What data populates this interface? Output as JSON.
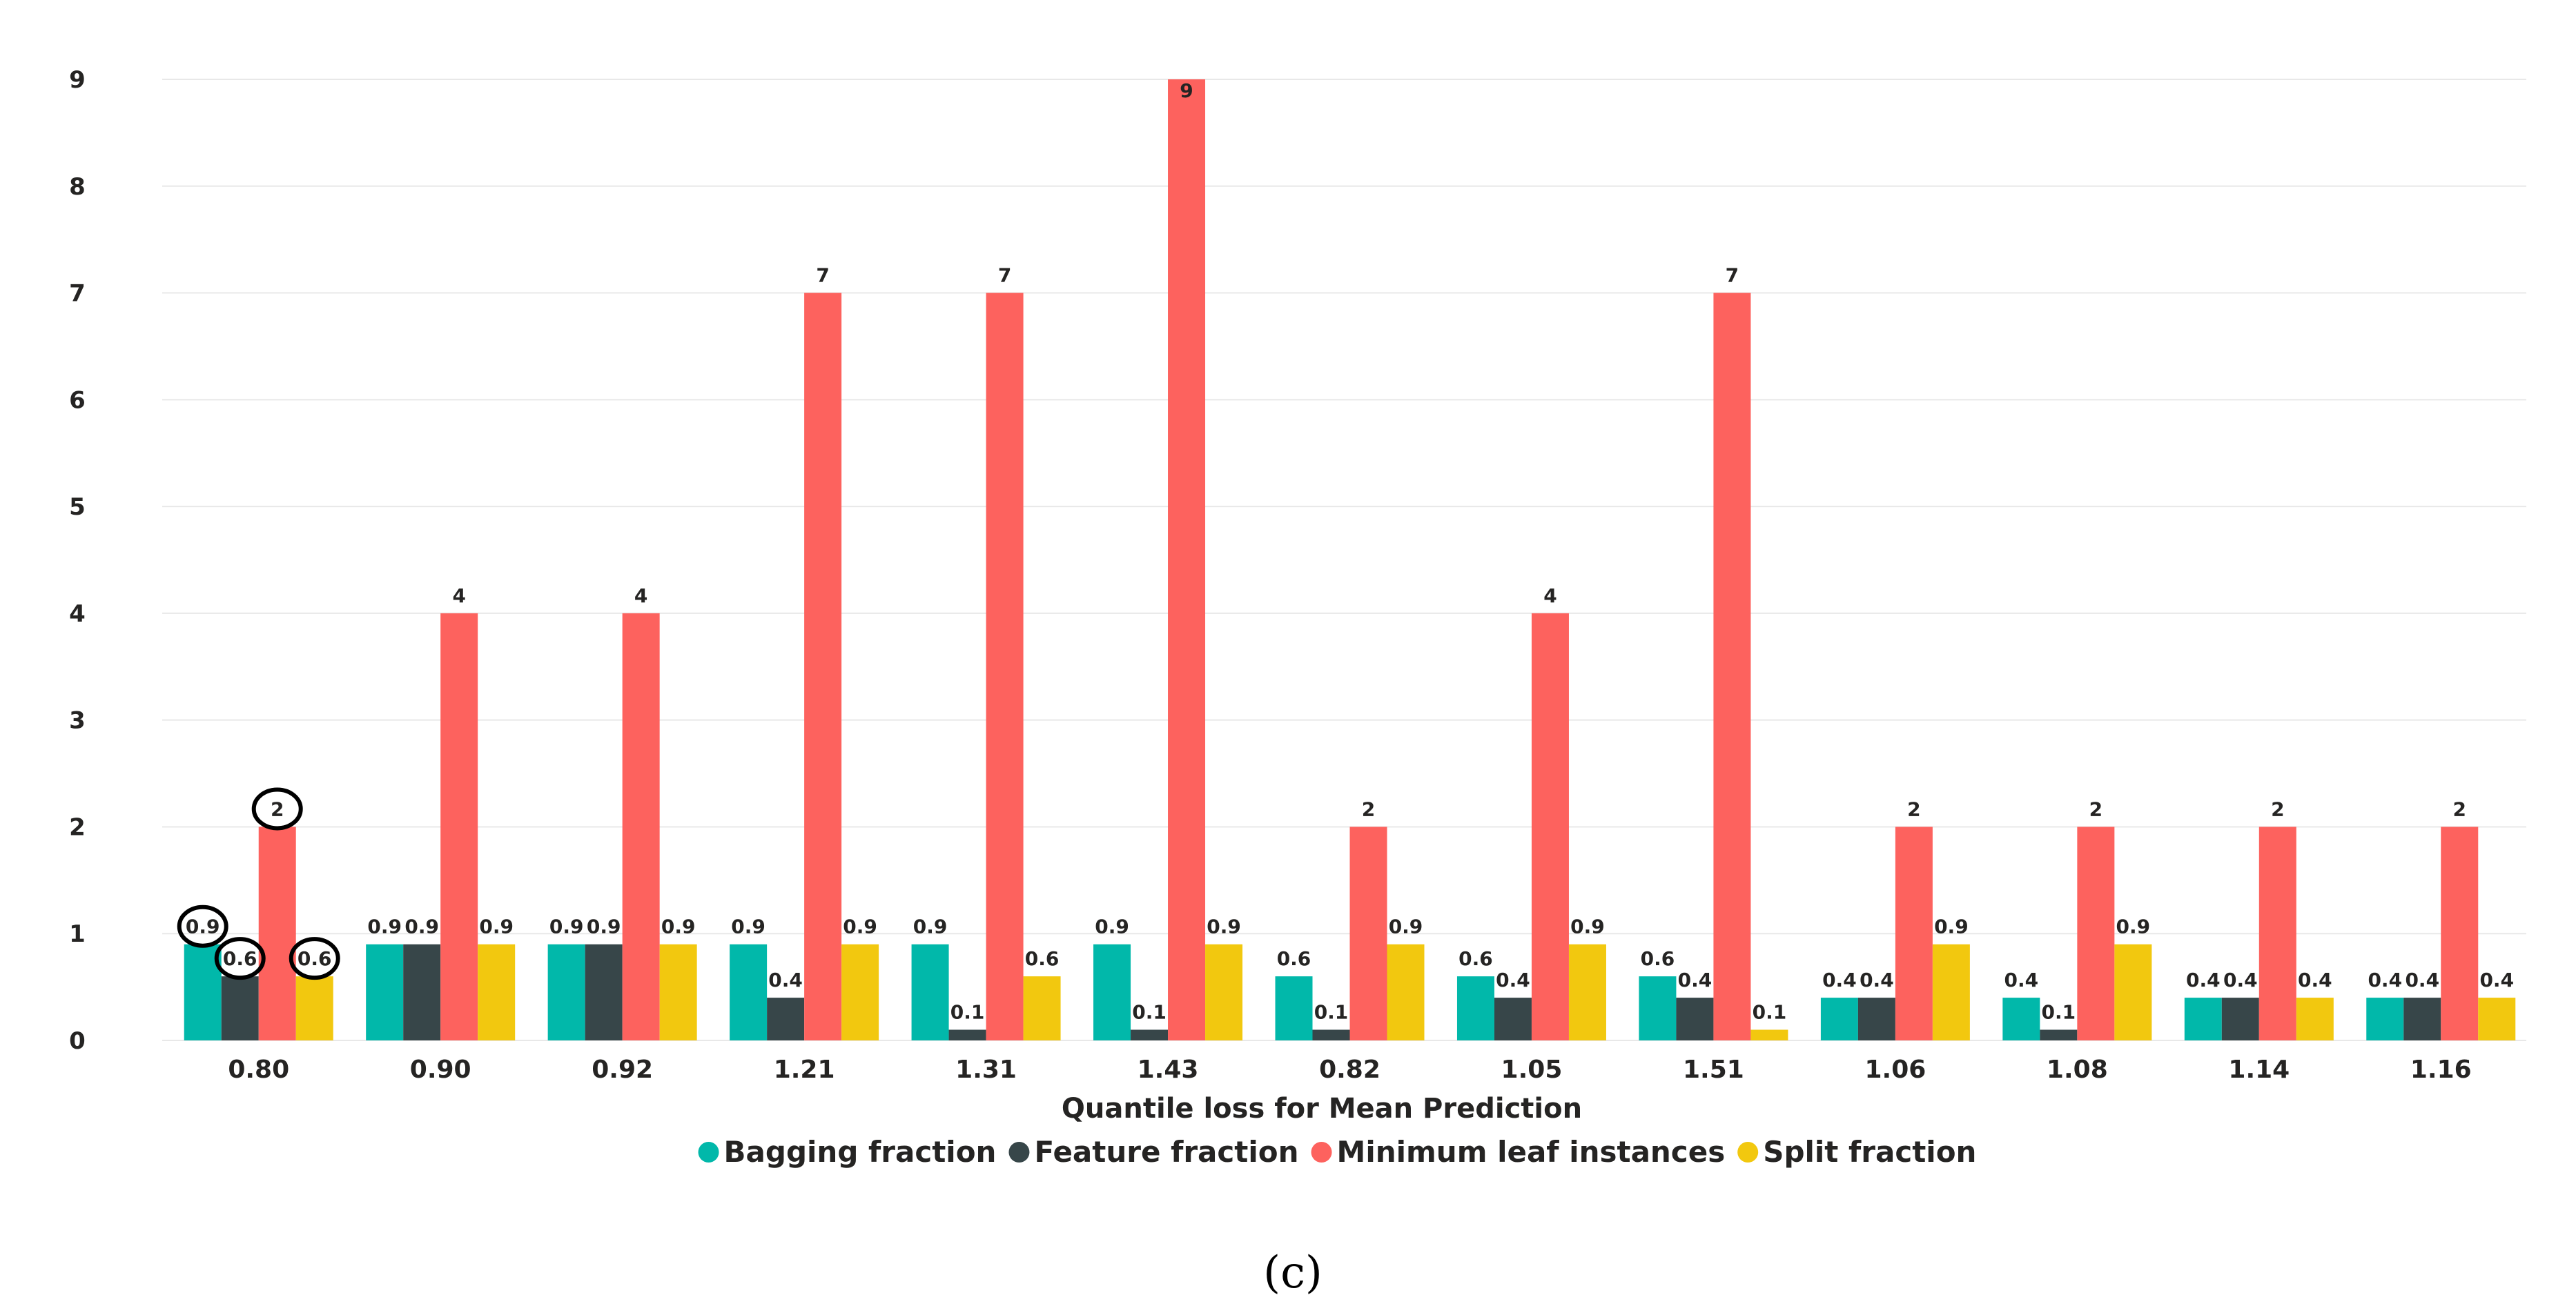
{
  "chart_data": {
    "type": "bar",
    "title": "",
    "xlabel": "Quantile loss for Mean Prediction",
    "ylabel": "",
    "ylim": [
      0,
      9
    ],
    "yticks": [
      "0",
      "1",
      "2",
      "3",
      "4",
      "5",
      "6",
      "7",
      "8",
      "9"
    ],
    "grid": true,
    "legend_position": "bottom",
    "categories": [
      "0.80",
      "0.90",
      "0.92",
      "1.21",
      "1.31",
      "1.43",
      "0.82",
      "1.05",
      "1.51",
      "1.06",
      "1.08",
      "1.14",
      "1.16"
    ],
    "series": [
      {
        "name": "Bagging fraction",
        "color": "#01b8aa",
        "values": [
          0.9,
          0.9,
          0.9,
          0.9,
          0.9,
          0.9,
          0.6,
          0.6,
          0.6,
          0.4,
          0.4,
          0.4,
          0.4
        ],
        "labels": [
          "0.9",
          "0.9",
          "0.9",
          "0.9",
          "0.9",
          "0.9",
          "0.6",
          "0.6",
          "0.6",
          "0.4",
          "0.4",
          "0.4",
          "0.4"
        ]
      },
      {
        "name": "Feature fraction",
        "color": "#374649",
        "values": [
          0.6,
          0.9,
          0.9,
          0.4,
          0.1,
          0.1,
          0.1,
          0.4,
          0.4,
          0.4,
          0.1,
          0.4,
          0.4
        ],
        "labels": [
          "0.6",
          "0.9",
          "0.9",
          "0.4",
          "0.1",
          "0.1",
          "0.1",
          "0.4",
          "0.4",
          "0.4",
          "0.1",
          "0.4",
          "0.4"
        ]
      },
      {
        "name": "Minimum leaf instances",
        "color": "#fd625e",
        "values": [
          2,
          4,
          4,
          7,
          7,
          9,
          2,
          4,
          7,
          2,
          2,
          2,
          2
        ],
        "labels": [
          "2",
          "4",
          "4",
          "7",
          "7",
          "9",
          "2",
          "4",
          "7",
          "2",
          "2",
          "2",
          "2"
        ]
      },
      {
        "name": "Split fraction",
        "color": "#f2c80f",
        "values": [
          0.6,
          0.9,
          0.9,
          0.9,
          0.6,
          0.9,
          0.9,
          0.9,
          0.1,
          0.9,
          0.9,
          0.4,
          0.4
        ],
        "labels": [
          "0.6",
          "0.9",
          "0.9",
          "0.9",
          "0.6",
          "0.9",
          "0.9",
          "0.9",
          "0.1",
          "0.9",
          "0.9",
          "0.4",
          "0.4"
        ]
      }
    ],
    "highlighted_category_index": 0,
    "panel_label": "(c)"
  }
}
